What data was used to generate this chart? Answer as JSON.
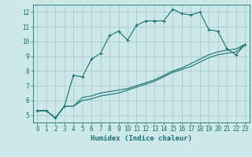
{
  "xlabel": "Humidex (Indice chaleur)",
  "ylabel": "",
  "bg_color": "#cce8e8",
  "grid_color": "#aacccc",
  "line_color": "#1a7070",
  "xlim": [
    -0.5,
    23.5
  ],
  "ylim": [
    4.5,
    12.5
  ],
  "xticks": [
    0,
    1,
    2,
    3,
    4,
    5,
    6,
    7,
    8,
    9,
    10,
    11,
    12,
    13,
    14,
    15,
    16,
    17,
    18,
    19,
    20,
    21,
    22,
    23
  ],
  "yticks": [
    5,
    6,
    7,
    8,
    9,
    10,
    11,
    12
  ],
  "line1_x": [
    0,
    1,
    2,
    3,
    4,
    5,
    6,
    7,
    8,
    9,
    10,
    11,
    12,
    13,
    14,
    15,
    16,
    17,
    18,
    19,
    20,
    21,
    22,
    23
  ],
  "line1_y": [
    5.3,
    5.3,
    4.8,
    5.6,
    7.7,
    7.6,
    8.8,
    9.2,
    10.4,
    10.7,
    10.1,
    11.1,
    11.4,
    11.4,
    11.4,
    12.2,
    11.9,
    11.8,
    12.0,
    10.8,
    10.7,
    9.5,
    9.1,
    9.8
  ],
  "line2_x": [
    0,
    1,
    2,
    3,
    4,
    5,
    6,
    7,
    8,
    9,
    10,
    11,
    12,
    13,
    14,
    15,
    16,
    17,
    18,
    19,
    20,
    21,
    22,
    23
  ],
  "line2_y": [
    5.3,
    5.3,
    4.8,
    5.6,
    5.6,
    6.2,
    6.3,
    6.5,
    6.6,
    6.7,
    6.8,
    7.0,
    7.2,
    7.4,
    7.7,
    8.0,
    8.2,
    8.5,
    8.8,
    9.1,
    9.3,
    9.4,
    9.5,
    9.8
  ],
  "line3_x": [
    0,
    1,
    2,
    3,
    4,
    5,
    6,
    7,
    8,
    9,
    10,
    11,
    12,
    13,
    14,
    15,
    16,
    17,
    18,
    19,
    20,
    21,
    22,
    23
  ],
  "line3_y": [
    5.3,
    5.3,
    4.8,
    5.6,
    5.6,
    6.0,
    6.1,
    6.3,
    6.4,
    6.5,
    6.7,
    6.9,
    7.1,
    7.3,
    7.6,
    7.9,
    8.1,
    8.3,
    8.6,
    8.9,
    9.1,
    9.2,
    9.3,
    9.8
  ],
  "xlabel_fontsize": 6.5,
  "tick_fontsize": 5.5
}
